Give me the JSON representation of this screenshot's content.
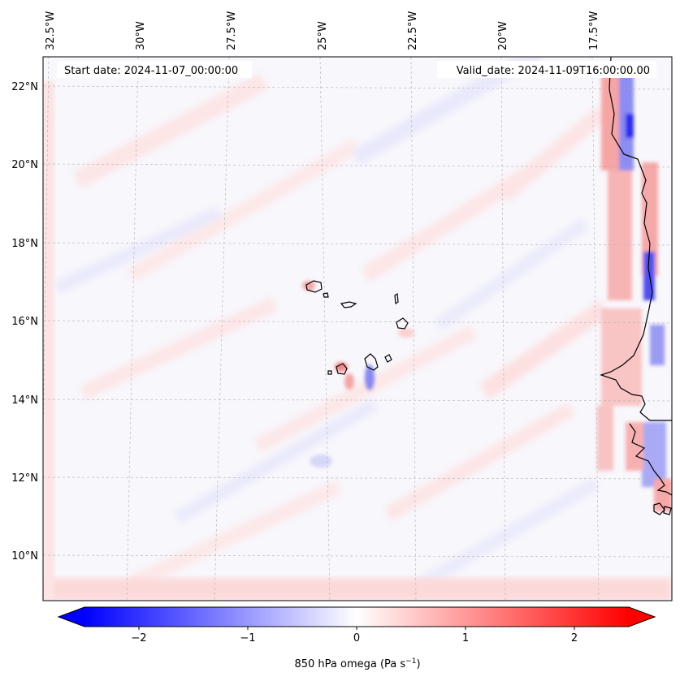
{
  "map": {
    "start_label": "Start date: 2024-11-07_00:00:00",
    "valid_label": "Valid_date: 2024-11-09T16:00:00.00",
    "lon_ticks": [
      "32.5°W",
      "30°W",
      "27.5°W",
      "25°W",
      "22.5°W",
      "20°W",
      "17.5°W"
    ],
    "lat_ticks": [
      "22°N",
      "20°N",
      "18°N",
      "16°N",
      "14°N",
      "12°N",
      "10°N"
    ],
    "field": "850 hPa omega",
    "colormap": "bwr",
    "colors": {
      "negative": "#0000ff",
      "zero": "#ffffff",
      "positive": "#ff0000",
      "coastline": "#000000",
      "grid": "#b0b0b0"
    }
  },
  "colorbar": {
    "label_main": "850 hPa omega (Pa s",
    "label_exp": "−1",
    "label_close": ")",
    "tick_labels": [
      "−2",
      "−1",
      "0",
      "1",
      "2"
    ],
    "ticks": [
      -2,
      -1,
      0,
      1,
      2
    ],
    "range": [
      -2.5,
      2.5
    ],
    "extend": "both"
  }
}
